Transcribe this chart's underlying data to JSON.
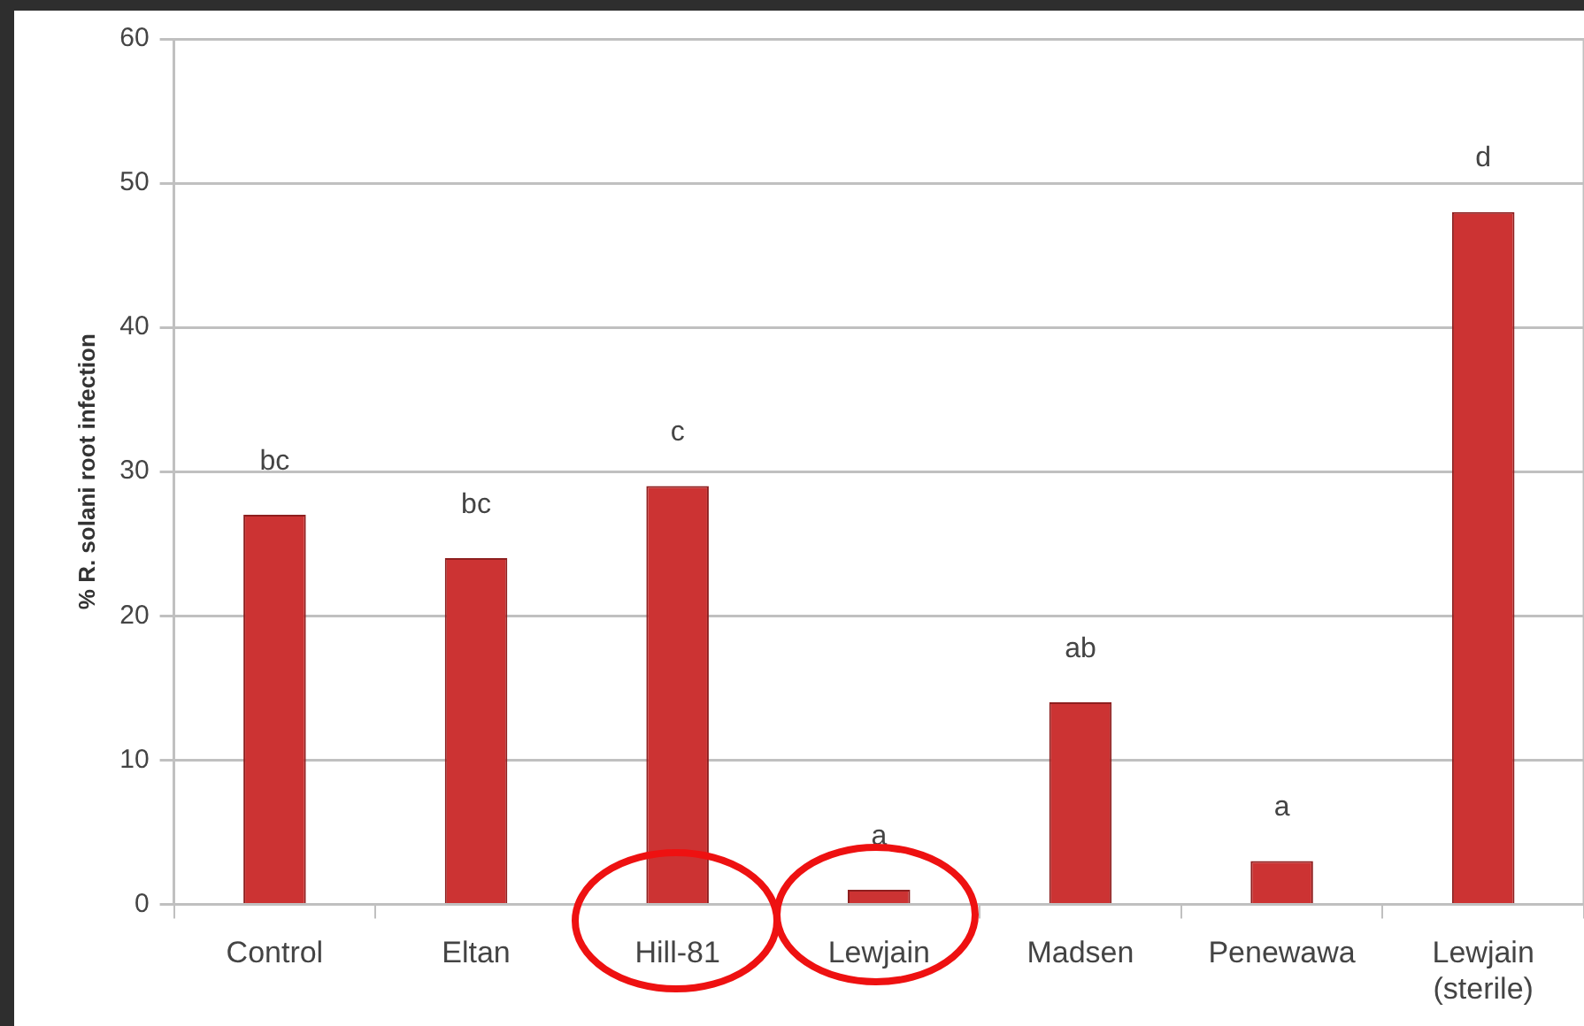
{
  "chart_data": {
    "type": "bar",
    "ylabel": "% R. solani root infection",
    "categories": [
      "Control",
      "Eltan",
      "Hill-81",
      "Lewjain",
      "Madsen",
      "Penewawa",
      "Lewjain (sterile)"
    ],
    "values": [
      27,
      24,
      29,
      1,
      14,
      3,
      48
    ],
    "color": "#cc3333",
    "ylim": [
      0,
      60
    ],
    "yticks": [
      0,
      10,
      20,
      30,
      40,
      50,
      60
    ],
    "grid": "y",
    "annotations": [
      {
        "text": "bc",
        "x": "Control",
        "y": 27
      },
      {
        "text": "bc",
        "x": "Eltan",
        "y": 24
      },
      {
        "text": "c",
        "x": "Hill-81",
        "y": 29
      },
      {
        "text": "a",
        "x": "Lewjain",
        "y": 1
      },
      {
        "text": "ab",
        "x": "Madsen",
        "y": 14
      },
      {
        "text": "a",
        "x": "Penewawa",
        "y": 3
      },
      {
        "text": "d",
        "x": "Lewjain (sterile)",
        "y": 48
      }
    ]
  }
}
